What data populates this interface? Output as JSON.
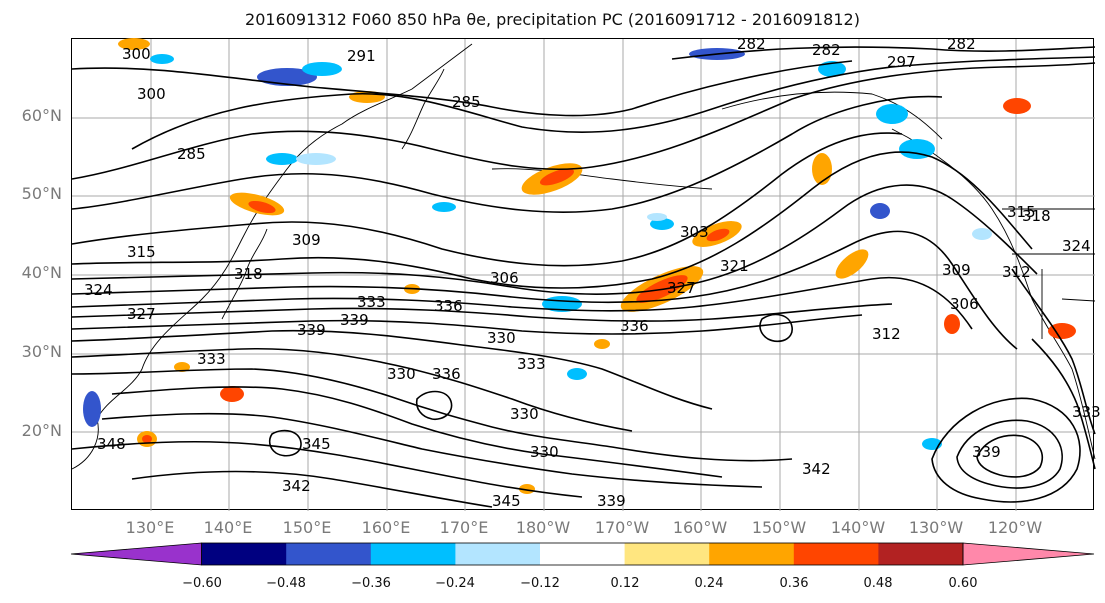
{
  "title": "2016091312 F060 850 hPa θe, precipitation PC (2016091712 - 2016091812)",
  "map": {
    "latitude_labels": [
      "60°N",
      "50°N",
      "40°N",
      "30°N",
      "20°N"
    ],
    "longitude_labels": [
      "130°E",
      "140°E",
      "150°E",
      "160°E",
      "170°E",
      "180°W",
      "170°W",
      "160°W",
      "150°W",
      "140°W",
      "130°W",
      "120°W"
    ],
    "contour_labels": [
      "300",
      "291",
      "282",
      "282",
      "282",
      "285",
      "285",
      "297",
      "300",
      "309",
      "315",
      "318",
      "324",
      "327",
      "303",
      "306",
      "321",
      "327",
      "333",
      "336",
      "339",
      "339",
      "330",
      "333",
      "330",
      "330",
      "336",
      "333",
      "330",
      "309",
      "312",
      "306",
      "312",
      "348",
      "345",
      "342",
      "342",
      "345",
      "339",
      "339",
      "336",
      "333",
      "315",
      "318",
      "324"
    ]
  },
  "colorbar": {
    "tick_labels": [
      "−0.60",
      "−0.48",
      "−0.36",
      "−0.24",
      "−0.12",
      "0.12",
      "0.24",
      "0.36",
      "0.48",
      "0.60"
    ],
    "colors": [
      "#9932cc",
      "#000080",
      "#3355cc",
      "#00bfff",
      "#b3e5ff",
      "#ffffff",
      "#ffe680",
      "#ffa500",
      "#ff4500",
      "#b22222",
      "#ff88aa"
    ]
  }
}
